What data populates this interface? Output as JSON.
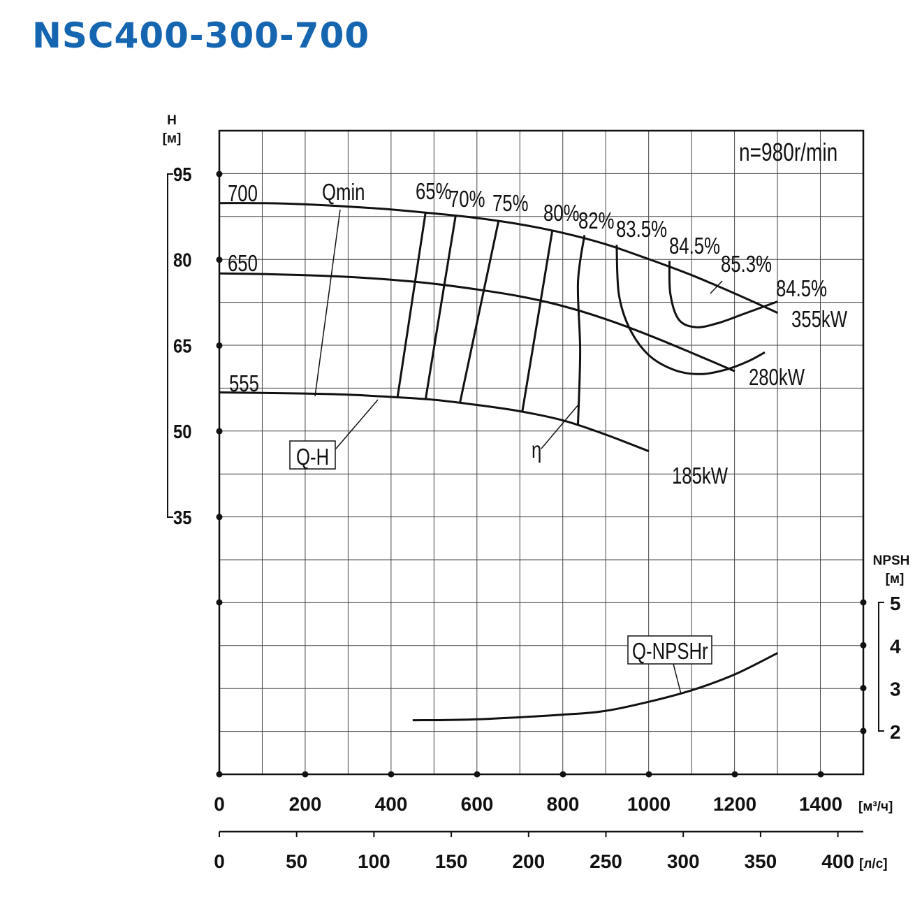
{
  "title": "NSC400-300-700",
  "chart_data": {
    "type": "line",
    "speed_label": "n=980r/min",
    "x_axis": {
      "unit": "[м³/ч]",
      "ticks": [
        "0",
        "200",
        "400",
        "600",
        "800",
        "1000",
        "1200",
        "1400"
      ],
      "range": [
        0,
        1500
      ]
    },
    "x2_axis": {
      "unit": "[л/с]",
      "ticks": [
        "0",
        "50",
        "100",
        "150",
        "200",
        "250",
        "300",
        "350",
        "400"
      ],
      "range": [
        0,
        416.7
      ]
    },
    "y_axis": {
      "label": "H",
      "unit": "[м]",
      "ticks": [
        "95",
        "80",
        "65",
        "50",
        "35"
      ],
      "range": [
        35,
        95
      ]
    },
    "y2_axis": {
      "label": "NPSH",
      "unit": "[м]",
      "ticks": [
        "5",
        "4",
        "3",
        "2"
      ],
      "range": [
        1,
        5
      ]
    },
    "head_curves": [
      {
        "name": "700",
        "x": [
          0,
          100,
          200,
          300,
          400,
          500,
          600,
          700,
          800,
          900,
          1000,
          1100,
          1200,
          1300
        ],
        "y": [
          89.9,
          89.9,
          89.7,
          89.3,
          88.8,
          88.1,
          87.3,
          86.2,
          84.7,
          82.7,
          80.1,
          77.3,
          74.1,
          70.7
        ]
      },
      {
        "name": "650",
        "x": [
          0,
          100,
          200,
          300,
          400,
          500,
          600,
          700,
          800,
          900,
          1000,
          1100,
          1200
        ],
        "y": [
          77.6,
          77.5,
          77.3,
          77.0,
          76.5,
          75.8,
          74.8,
          73.6,
          71.9,
          69.6,
          66.8,
          63.7,
          60.5
        ]
      },
      {
        "name": "555",
        "x": [
          0,
          100,
          200,
          300,
          400,
          500,
          600,
          700,
          800,
          900,
          1000
        ],
        "y": [
          56.8,
          56.7,
          56.6,
          56.4,
          56.0,
          55.5,
          54.6,
          53.5,
          51.9,
          49.4,
          46.5
        ]
      }
    ],
    "power_labels": [
      "355kW",
      "280kW",
      "185kW"
    ],
    "efficiency_labels": [
      "65%",
      "70%",
      "75%",
      "80%",
      "82%",
      "83.5%",
      "84.5%",
      "85.3%",
      "84.5%"
    ],
    "efficiency_lines": [
      {
        "x": [
          415,
          480
        ],
        "y": [
          56.0,
          88.2
        ]
      },
      {
        "x": [
          480,
          550
        ],
        "y": [
          55.5,
          87.7
        ]
      },
      {
        "x": [
          560,
          650
        ],
        "y": [
          54.9,
          86.8
        ]
      },
      {
        "x": [
          705,
          775
        ],
        "y": [
          53.3,
          85.0
        ]
      },
      {
        "x": [
          835,
          840,
          835,
          850
        ],
        "y": [
          51.2,
          64.0,
          76.0,
          84.3
        ]
      }
    ],
    "efficiency_contours": [
      {
        "name": "83.5%",
        "x": [
          925,
          930,
          955,
          1000,
          1060,
          1120,
          1180,
          1230,
          1270
        ],
        "y": [
          82.6,
          74.0,
          68.0,
          63.3,
          60.7,
          60.0,
          60.8,
          62.2,
          63.8
        ]
      },
      {
        "name": "84.5%",
        "x": [
          1048,
          1050,
          1070,
          1110,
          1160,
          1220,
          1300
        ],
        "y": [
          79.8,
          74.0,
          69.5,
          68.2,
          68.9,
          70.5,
          72.7
        ]
      }
    ],
    "npsh_curve": {
      "name": "Q-NPSHr",
      "x": [
        450,
        600,
        800,
        900,
        1000,
        1100,
        1200,
        1300
      ],
      "y": [
        2.25,
        2.27,
        2.38,
        2.47,
        2.68,
        2.95,
        3.32,
        3.82
      ]
    },
    "annotations": [
      "Qmin",
      "Q-H",
      "η",
      "Q-NPSHr"
    ],
    "grid": true
  },
  "curve_labels": {
    "h700": "700",
    "h650": "650",
    "h555": "555"
  },
  "annotations": {
    "qmin": "Qmin",
    "qh": "Q-H",
    "eta": "η",
    "npsh": "Q-NPSHr"
  }
}
